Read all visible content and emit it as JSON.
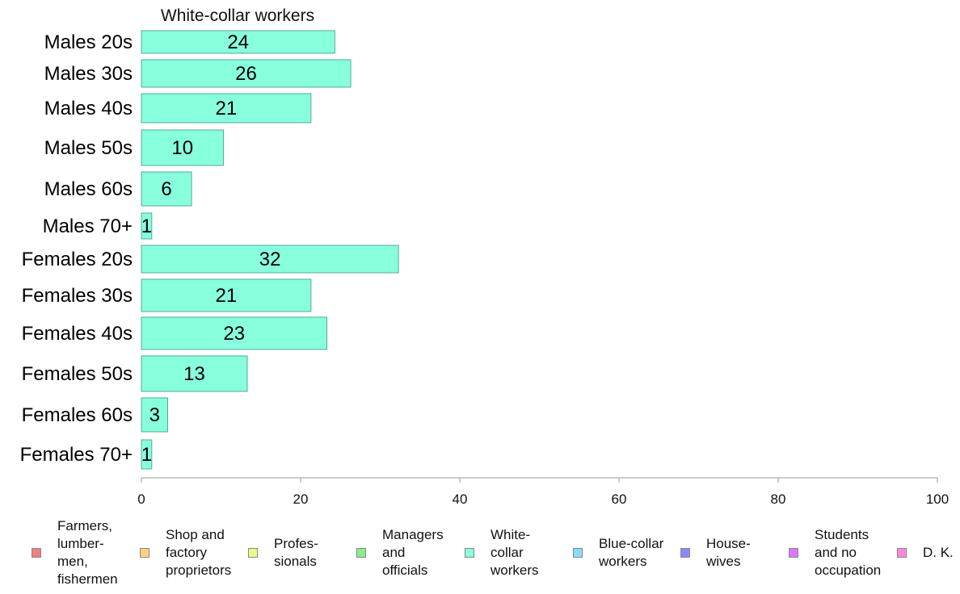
{
  "chart_data": {
    "type": "bar",
    "orientation": "horizontal",
    "title": "White-collar workers",
    "categories": [
      "Males 20s",
      "Males 30s",
      "Males 40s",
      "Males 50s",
      "Males 60s",
      "Males 70+",
      "Females 20s",
      "Females 30s",
      "Females 40s",
      "Females 50s",
      "Females 60s",
      "Females 70+"
    ],
    "values": [
      24,
      26,
      21,
      10,
      6,
      1,
      32,
      21,
      23,
      13,
      3,
      1
    ],
    "data_labels": [
      "24",
      "26",
      "21",
      "10",
      "6",
      "1",
      "32",
      "21",
      "23",
      "13",
      "3",
      "1"
    ],
    "xlim": [
      0,
      100
    ],
    "x_ticks": [
      "0",
      "20",
      "40",
      "60",
      "80",
      "100"
    ],
    "bar_color": "#88ffdd",
    "bar_stroke": "#55aa99",
    "legend_position": "bottom",
    "legend": [
      {
        "label": "Farmers,\nlumber-\nmen,\nfishermen",
        "color": "#f08080"
      },
      {
        "label": "Shop and\nfactory\nproprietors",
        "color": "#ffd27f"
      },
      {
        "label": "Profes-\nsionals",
        "color": "#e6ff88"
      },
      {
        "label": "Managers\nand\nofficials",
        "color": "#88ee88"
      },
      {
        "label": "White-\ncollar\nworkers",
        "color": "#88ffdd"
      },
      {
        "label": "Blue-collar\nworkers",
        "color": "#88ddff"
      },
      {
        "label": "House-\nwives",
        "color": "#8888ff"
      },
      {
        "label": "Students\nand no\noccupation",
        "color": "#dd77ff"
      },
      {
        "label": "D. K.",
        "color": "#ff88dd"
      }
    ]
  }
}
